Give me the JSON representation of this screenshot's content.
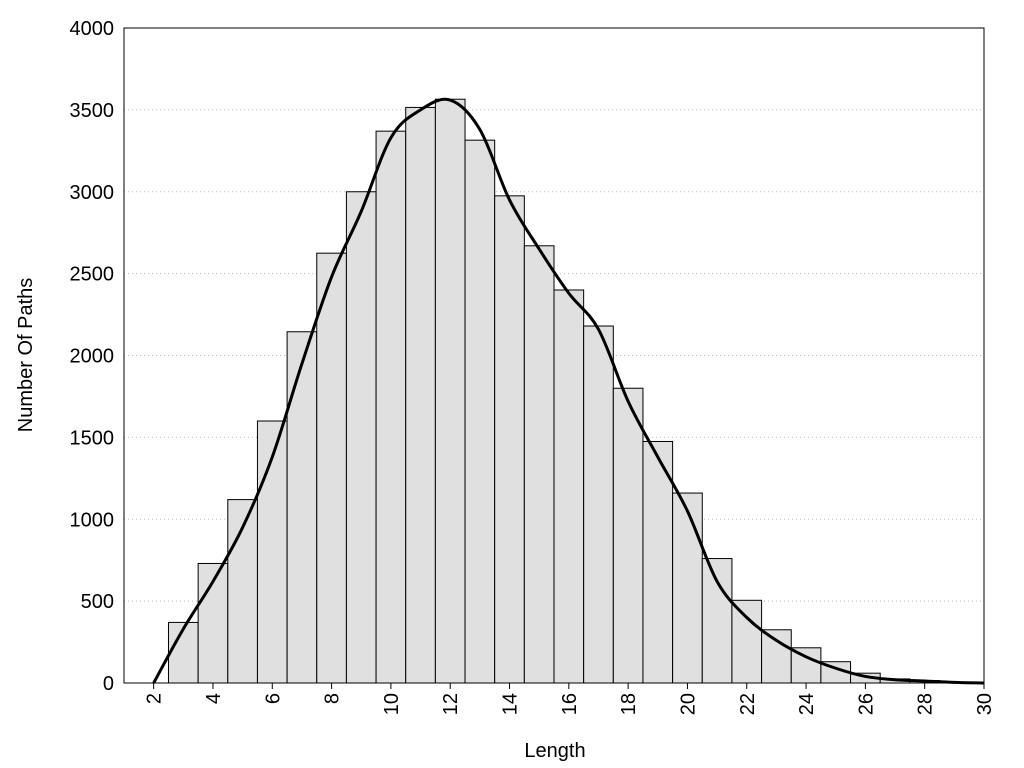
{
  "chart_data": {
    "type": "histogram",
    "xlabel": "Length",
    "ylabel": "Number Of Paths",
    "bins": [
      2.5,
      3.5,
      4.5,
      5.5,
      6.5,
      7.5,
      8.5,
      9.5,
      10.5,
      11.5,
      12.5,
      13.5,
      14.5,
      15.5,
      16.5,
      17.5,
      18.5,
      19.5,
      20.5,
      21.5,
      22.5,
      23.5,
      24.5,
      25.5,
      26.5,
      27.5,
      28.5,
      29.5
    ],
    "values": [
      370,
      730,
      1120,
      1600,
      2145,
      2625,
      3000,
      3370,
      3515,
      3565,
      3315,
      2975,
      2670,
      2400,
      2180,
      1800,
      1475,
      1160,
      760,
      505,
      325,
      215,
      130,
      60,
      25,
      15,
      5
    ],
    "color": "#e0e0e0",
    "curve": {
      "color": "#000000",
      "x": [
        2,
        3,
        4,
        5,
        6,
        7,
        8,
        9,
        10,
        11,
        12,
        13,
        14,
        15,
        16,
        17,
        18,
        19,
        20,
        21,
        22,
        23,
        24,
        25,
        26,
        27,
        28,
        29,
        30
      ],
      "values": [
        0,
        330,
        620,
        950,
        1380,
        1950,
        2480,
        2880,
        3330,
        3500,
        3560,
        3380,
        2950,
        2650,
        2380,
        2160,
        1720,
        1380,
        1050,
        620,
        400,
        260,
        160,
        90,
        40,
        20,
        12,
        4,
        0
      ]
    },
    "xlim": [
      1,
      30
    ],
    "ylim": [
      0,
      4000
    ],
    "xticks": [
      2,
      4,
      6,
      8,
      10,
      12,
      14,
      16,
      18,
      20,
      22,
      24,
      26,
      28,
      30
    ],
    "yticks": [
      0,
      500,
      1000,
      1500,
      2000,
      2500,
      3000,
      3500,
      4000
    ],
    "grid": true
  }
}
